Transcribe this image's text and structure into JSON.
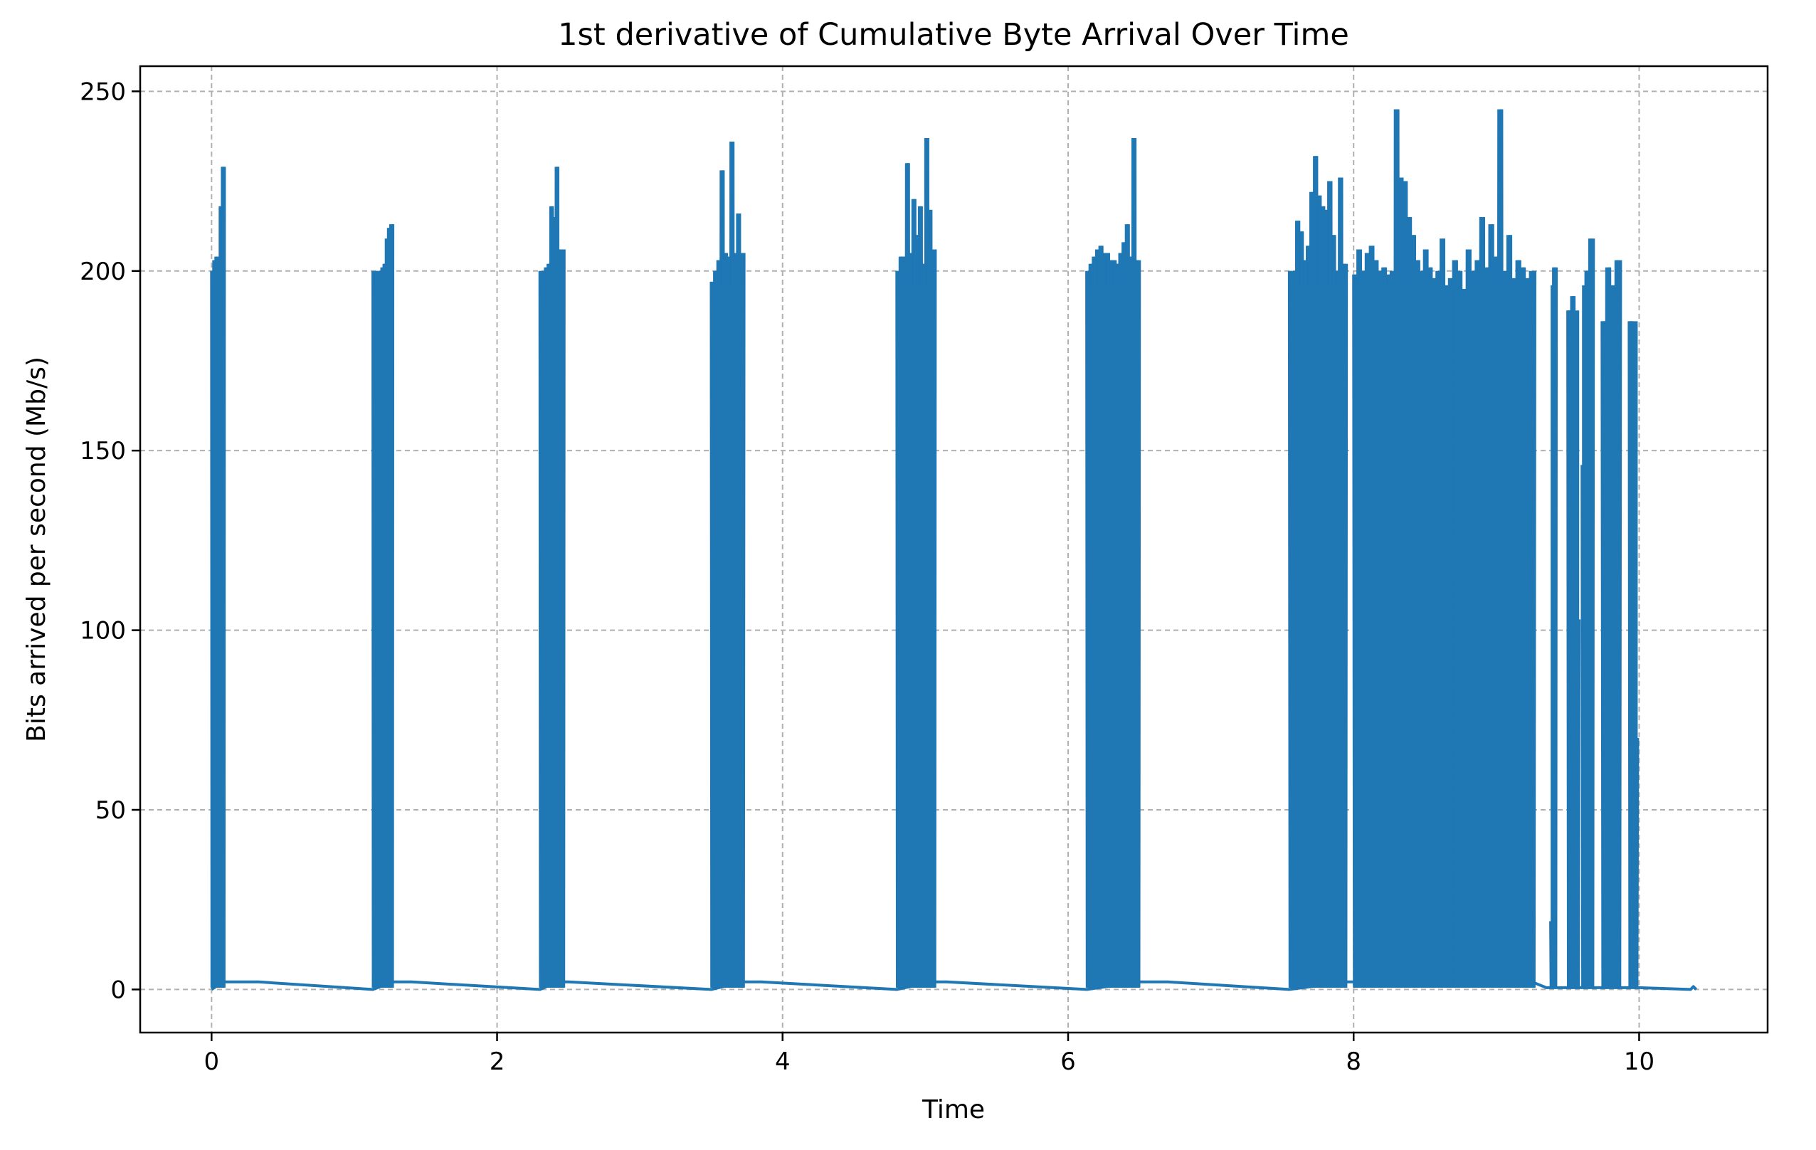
{
  "chart_data": {
    "type": "line",
    "title": "1st derivative of Cumulative Byte Arrival Over Time",
    "xlabel": "Time",
    "ylabel": "Bits arrived per second (Mb/s)",
    "xlim": [
      -0.5,
      10.9
    ],
    "ylim": [
      -12,
      257
    ],
    "xticks": [
      0,
      2,
      4,
      6,
      8,
      10
    ],
    "yticks": [
      0,
      50,
      100,
      150,
      200,
      250
    ],
    "xtick_labels": [
      "0",
      "2",
      "4",
      "6",
      "8",
      "10"
    ],
    "ytick_labels": [
      "0",
      "50",
      "100",
      "150",
      "200",
      "250"
    ],
    "grid": true,
    "grid_style": "dashed",
    "line_color": "#1f77b4",
    "grid_color": "#b0b0b0",
    "series": [
      {
        "baseline": [
          [
            0.0,
            0
          ],
          [
            0.08,
            2.1
          ],
          [
            0.33,
            2.1
          ],
          [
            1.13,
            0
          ],
          [
            1.27,
            2.1
          ],
          [
            1.4,
            2.1
          ],
          [
            2.3,
            0
          ],
          [
            2.42,
            2.1
          ],
          [
            2.5,
            2.1
          ],
          [
            3.5,
            0
          ],
          [
            3.72,
            2.1
          ],
          [
            3.85,
            2.1
          ],
          [
            4.8,
            0
          ],
          [
            5.05,
            2.1
          ],
          [
            5.15,
            2.1
          ],
          [
            6.13,
            0
          ],
          [
            6.5,
            2.1
          ],
          [
            6.7,
            2.1
          ],
          [
            7.55,
            0
          ],
          [
            7.95,
            2.1
          ],
          [
            8.1,
            2.1
          ],
          [
            9.25,
            2.1
          ],
          [
            9.35,
            0.5
          ],
          [
            9.5,
            0.5
          ],
          [
            9.6,
            0.5
          ],
          [
            10.0,
            0.5
          ],
          [
            10.36,
            0
          ],
          [
            10.38,
            0.8
          ],
          [
            10.4,
            0
          ]
        ],
        "bursts": [
          {
            "start": 0.0,
            "end": 0.09,
            "peaks": [
              200,
              203,
              204,
              203,
              218,
              229
            ]
          },
          {
            "start": 1.13,
            "end": 1.27,
            "peaks": [
              200,
              200,
              200,
              200,
              201,
              202,
              209,
              212,
              213
            ]
          },
          {
            "start": 2.3,
            "end": 2.47,
            "peaks": [
              200,
              200,
              201,
              202,
              218,
              215,
              229,
              206,
              206
            ]
          },
          {
            "start": 3.5,
            "end": 3.73,
            "peaks": [
              197,
              200,
              203,
              228,
              205,
              204,
              236,
              205,
              216,
              205
            ]
          },
          {
            "start": 4.8,
            "end": 5.07,
            "peaks": [
              200,
              204,
              204,
              230,
              205,
              220,
              210,
              218,
              202,
              237,
              217,
              206
            ]
          },
          {
            "start": 6.13,
            "end": 6.5,
            "peaks": [
              200,
              202,
              204,
              206,
              207,
              205,
              205,
              203,
              203,
              202,
              205,
              208,
              213,
              204,
              237,
              203
            ]
          },
          {
            "start": 7.55,
            "end": 7.95,
            "peaks": [
              200,
              200,
              214,
              211,
              203,
              207,
              222,
              232,
              221,
              218,
              217,
              225,
              210,
              200,
              226,
              202
            ]
          },
          {
            "start": 8.0,
            "end": 8.7,
            "peaks": [
              199,
              206,
              200,
              205,
              207,
              203,
              200,
              201,
              199,
              200,
              245,
              226,
              225,
              215,
              210,
              203,
              200,
              206,
              201,
              198,
              200,
              209,
              196,
              198
            ]
          },
          {
            "start": 8.7,
            "end": 9.27,
            "peaks": [
              203,
              200,
              195,
              206,
              200,
              203,
              215,
              201,
              213,
              204,
              245,
              200,
              210,
              198,
              203,
              201,
              198,
              200
            ]
          },
          {
            "start": 9.38,
            "end": 9.42,
            "peaks": [
              19,
              201
            ]
          },
          {
            "start": 9.5,
            "end": 9.58,
            "peaks": [
              189,
              193,
              103
            ]
          },
          {
            "start": 9.6,
            "end": 9.68,
            "peaks": [
              146,
              200,
              209
            ]
          },
          {
            "start": 9.74,
            "end": 9.87,
            "peaks": [
              186,
              201,
              196,
              203
            ]
          },
          {
            "start": 9.93,
            "end": 9.99,
            "peaks": [
              186,
              70
            ]
          }
        ]
      }
    ]
  }
}
